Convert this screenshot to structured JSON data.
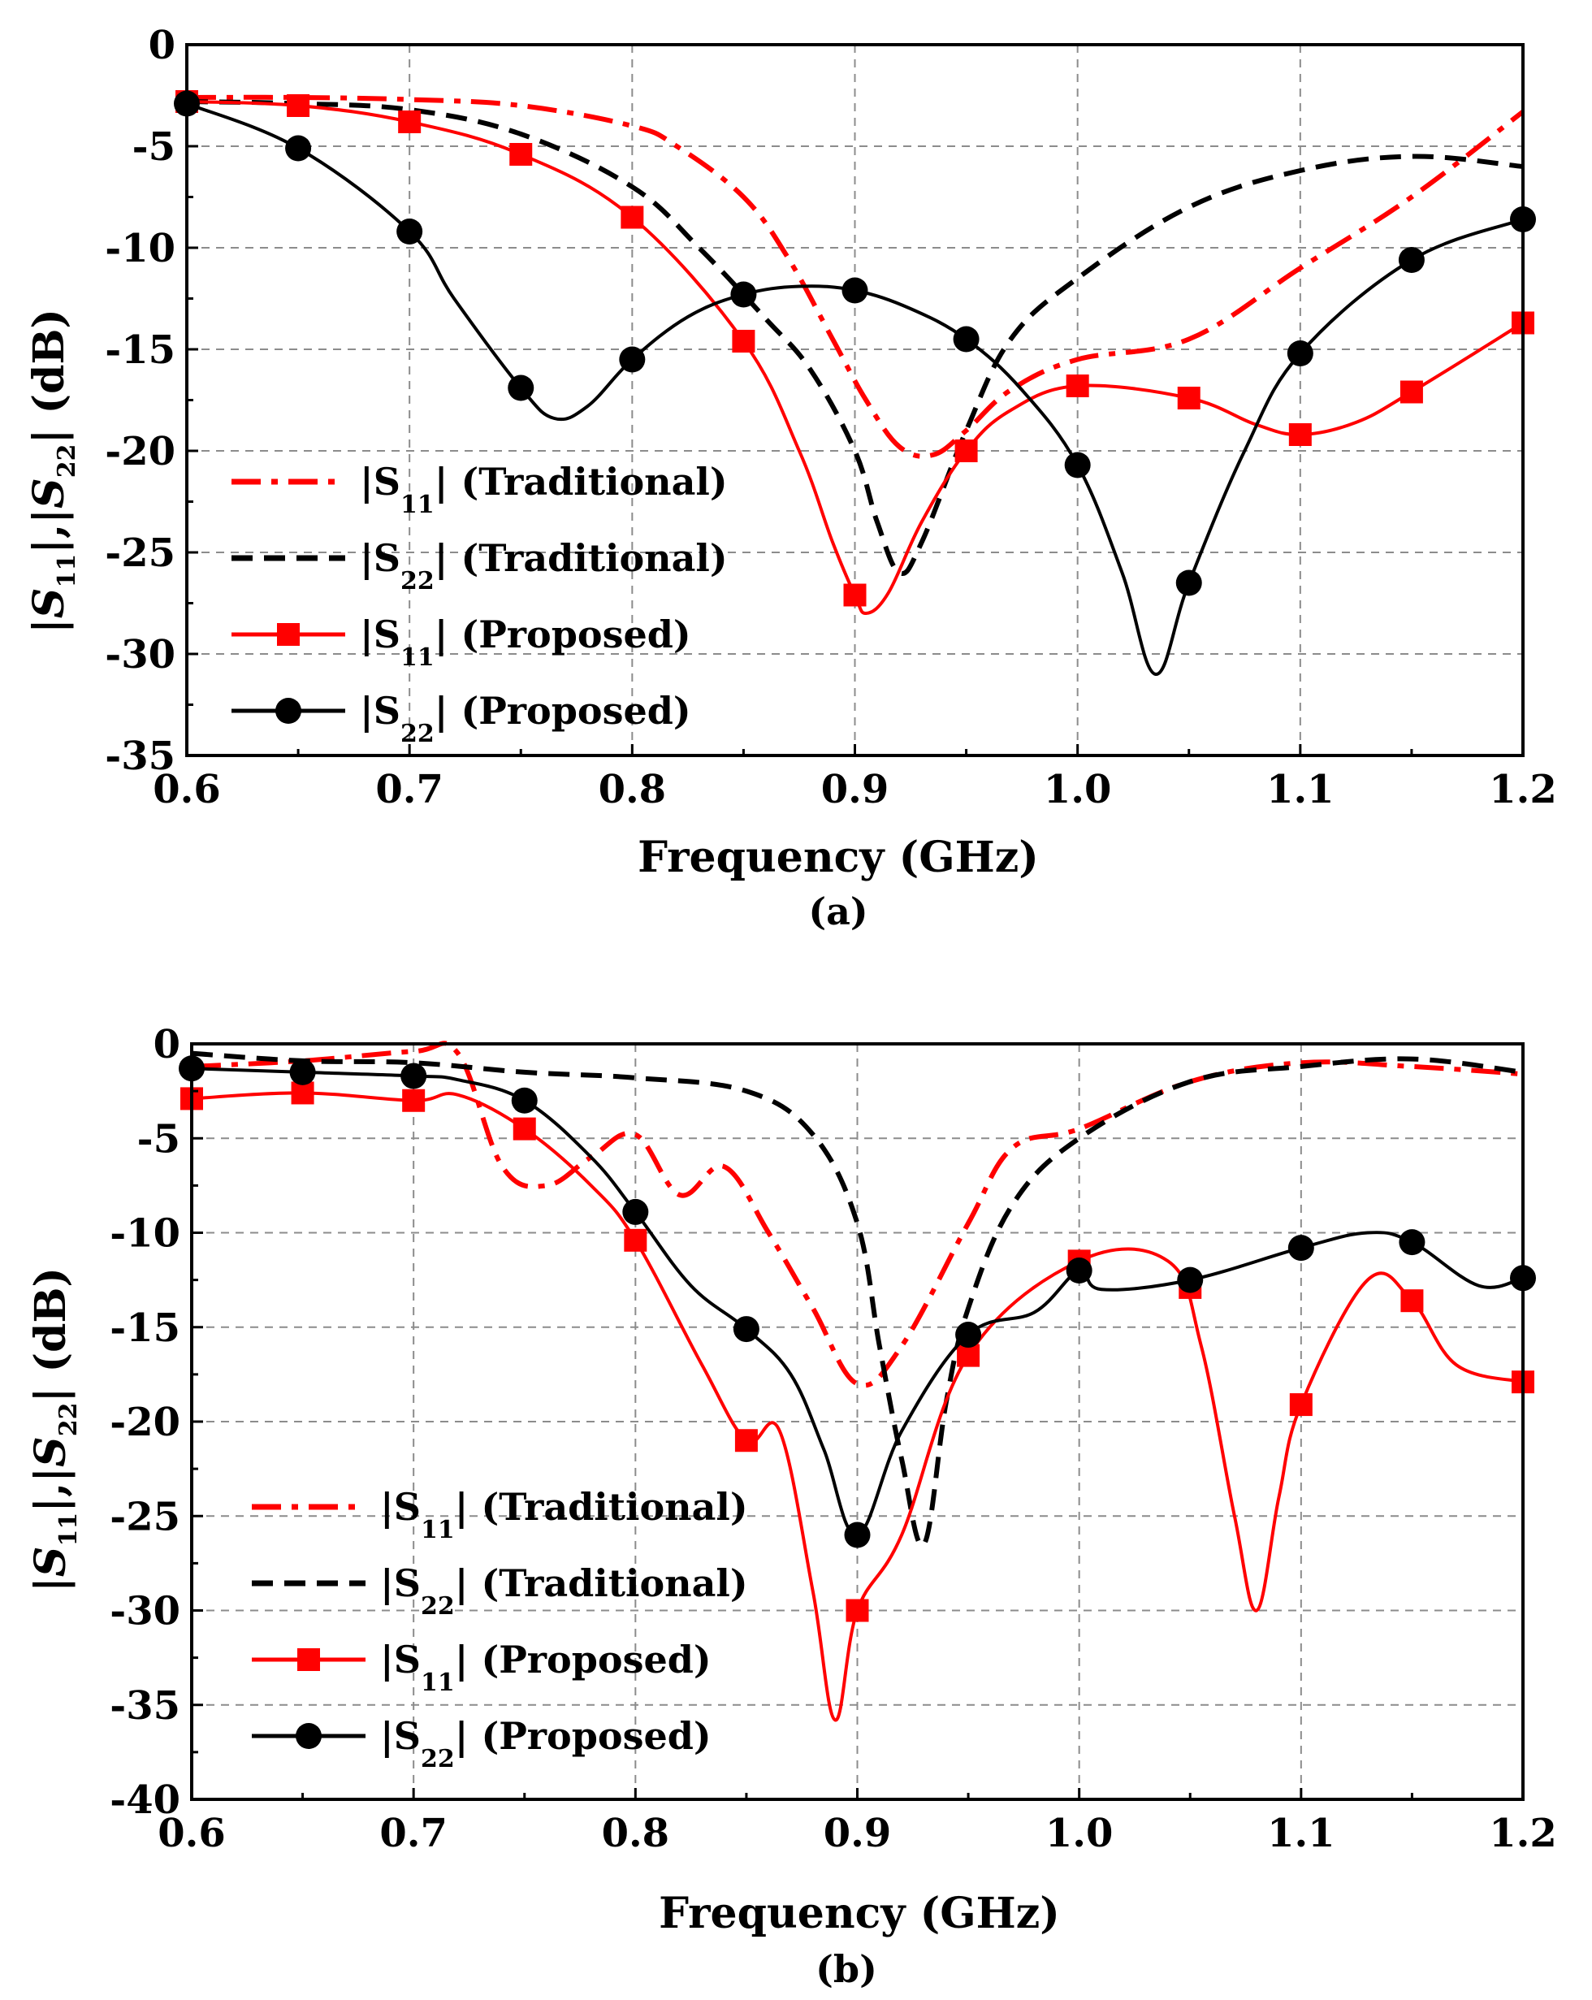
{
  "chart_data": [
    {
      "type": "line",
      "caption": "(a)",
      "xlabel": "Frequency (GHz)",
      "ylabel": "|S11|,|S22| (dB)",
      "xlim": [
        0.6,
        1.2
      ],
      "ylim": [
        -35,
        0
      ],
      "xticks": [
        "0.6",
        "0.7",
        "0.8",
        "0.9",
        "1.0",
        "1.1",
        "1.2"
      ],
      "yticks": [
        "0",
        "-5",
        "-10",
        "-15",
        "-20",
        "-25",
        "-30",
        "-35"
      ],
      "grid": true,
      "legend_position": "bottom-left",
      "series": [
        {
          "name": "|S11| (Traditional)",
          "label_main": "|S",
          "label_sub": "11",
          "label_tail": "| (Traditional)",
          "color": "#ff0000",
          "dash": "dashdot",
          "marker": "none",
          "x": [
            0.6,
            0.65,
            0.7,
            0.75,
            0.8,
            0.82,
            0.85,
            0.87,
            0.89,
            0.905,
            0.92,
            0.935,
            0.95,
            0.97,
            1.0,
            1.05,
            1.1,
            1.15,
            1.2
          ],
          "y": [
            -2.6,
            -2.6,
            -2.7,
            -3.0,
            -4.0,
            -5.0,
            -7.5,
            -10.5,
            -14.5,
            -17.5,
            -19.8,
            -20.2,
            -19.0,
            -17.0,
            -15.5,
            -14.5,
            -11.0,
            -7.5,
            -3.3
          ]
        },
        {
          "name": "|S22| (Traditional)",
          "label_main": "|S",
          "label_sub": "22",
          "label_tail": "| (Traditional)",
          "color": "#000000",
          "dash": "dash",
          "marker": "none",
          "x": [
            0.6,
            0.65,
            0.7,
            0.75,
            0.8,
            0.83,
            0.86,
            0.88,
            0.9,
            0.91,
            0.92,
            0.93,
            0.95,
            0.97,
            1.0,
            1.05,
            1.1,
            1.15,
            1.2
          ],
          "y": [
            -2.8,
            -2.9,
            -3.2,
            -4.4,
            -7.0,
            -10.0,
            -13.5,
            -16.0,
            -20.0,
            -23.5,
            -26.0,
            -24.5,
            -19.0,
            -14.5,
            -11.5,
            -8.0,
            -6.2,
            -5.5,
            -6.0
          ]
        },
        {
          "name": "|S11| (Proposed)",
          "label_main": "|S",
          "label_sub": "11",
          "label_tail": "| (Proposed)",
          "color": "#ff0000",
          "dash": "solid",
          "marker": "square",
          "x": [
            0.6,
            0.65,
            0.7,
            0.75,
            0.8,
            0.85,
            0.875,
            0.89,
            0.9,
            0.905,
            0.915,
            0.93,
            0.95,
            0.97,
            1.0,
            1.05,
            1.08,
            1.1,
            1.125,
            1.15,
            1.2
          ],
          "y": [
            -2.8,
            -3.0,
            -3.8,
            -5.4,
            -8.5,
            -14.6,
            -20.0,
            -24.5,
            -27.1,
            -28.0,
            -27.0,
            -23.5,
            -20.0,
            -18.0,
            -16.8,
            -17.4,
            -18.7,
            -19.2,
            -18.6,
            -17.1,
            -13.7
          ],
          "marker_x": [
            0.6,
            0.65,
            0.7,
            0.75,
            0.8,
            0.85,
            0.9,
            0.95,
            1.0,
            1.05,
            1.1,
            1.15,
            1.2
          ],
          "marker_y": [
            -2.8,
            -3.0,
            -3.8,
            -5.4,
            -8.5,
            -14.6,
            -27.1,
            -20.0,
            -16.8,
            -17.4,
            -19.2,
            -17.1,
            -13.7
          ]
        },
        {
          "name": "|S22| (Proposed)",
          "label_main": "|S",
          "label_sub": "22",
          "label_tail": "| (Proposed)",
          "color": "#000000",
          "dash": "solid",
          "marker": "circle",
          "x": [
            0.6,
            0.65,
            0.7,
            0.72,
            0.75,
            0.765,
            0.78,
            0.8,
            0.825,
            0.85,
            0.875,
            0.9,
            0.925,
            0.95,
            0.975,
            1.0,
            1.02,
            1.035,
            1.05,
            1.075,
            1.1,
            1.15,
            1.2
          ],
          "y": [
            -2.9,
            -5.1,
            -9.2,
            -12.5,
            -16.9,
            -18.4,
            -17.8,
            -15.5,
            -13.4,
            -12.3,
            -11.9,
            -12.1,
            -13.0,
            -14.5,
            -17.0,
            -20.7,
            -26.0,
            -31.0,
            -26.5,
            -20.0,
            -15.2,
            -10.6,
            -8.6
          ],
          "marker_x": [
            0.6,
            0.65,
            0.7,
            0.75,
            0.8,
            0.85,
            0.9,
            0.95,
            1.0,
            1.05,
            1.1,
            1.15,
            1.2
          ],
          "marker_y": [
            -2.9,
            -5.1,
            -9.2,
            -16.9,
            -15.5,
            -12.3,
            -12.1,
            -14.5,
            -20.7,
            -26.5,
            -15.2,
            -10.6,
            -8.6
          ]
        }
      ]
    },
    {
      "type": "line",
      "caption": "(b)",
      "xlabel": "Frequency (GHz)",
      "ylabel": "|S11|,|S22| (dB)",
      "xlim": [
        0.6,
        1.2
      ],
      "ylim": [
        -40,
        0
      ],
      "xticks": [
        "0.6",
        "0.7",
        "0.8",
        "0.9",
        "1.0",
        "1.1",
        "1.2"
      ],
      "yticks": [
        "0",
        "-5",
        "-10",
        "-15",
        "-20",
        "-25",
        "-30",
        "-35",
        "-40"
      ],
      "grid": true,
      "legend_position": "bottom-left",
      "series": [
        {
          "name": "|S11| (Traditional)",
          "label_main": "|S",
          "label_sub": "11",
          "label_tail": "| (Traditional)",
          "color": "#ff0000",
          "dash": "dashdot",
          "marker": "none",
          "x": [
            0.6,
            0.65,
            0.7,
            0.72,
            0.74,
            0.76,
            0.78,
            0.8,
            0.82,
            0.84,
            0.86,
            0.88,
            0.9,
            0.92,
            0.95,
            0.97,
            1.0,
            1.05,
            1.1,
            1.15,
            1.2
          ],
          "y": [
            -1.2,
            -0.9,
            -0.4,
            -0.5,
            -6.5,
            -7.5,
            -6.0,
            -4.8,
            -8.0,
            -6.5,
            -10.0,
            -14.0,
            -18.0,
            -16.0,
            -9.5,
            -5.5,
            -4.5,
            -2.0,
            -1.0,
            -1.2,
            -1.6
          ],
          "marker_x": [],
          "marker_y": []
        },
        {
          "name": "|S22| (Traditional)",
          "label_main": "|S",
          "label_sub": "22",
          "label_tail": "| (Traditional)",
          "color": "#000000",
          "dash": "dash",
          "marker": "none",
          "x": [
            0.6,
            0.65,
            0.7,
            0.75,
            0.8,
            0.85,
            0.88,
            0.9,
            0.91,
            0.92,
            0.93,
            0.94,
            0.95,
            0.97,
            1.0,
            1.05,
            1.1,
            1.15,
            1.2
          ],
          "y": [
            -0.5,
            -0.9,
            -1.0,
            -1.5,
            -1.8,
            -2.5,
            -4.8,
            -9.5,
            -16.0,
            -22.0,
            -26.5,
            -19.0,
            -14.0,
            -8.5,
            -5.0,
            -2.0,
            -1.2,
            -0.8,
            -1.5
          ],
          "marker_x": [],
          "marker_y": []
        },
        {
          "name": "|S11| (Proposed)",
          "label_main": "|S",
          "label_sub": "11",
          "label_tail": "| (Proposed)",
          "color": "#ff0000",
          "dash": "solid",
          "marker": "square",
          "x": [
            0.6,
            0.65,
            0.7,
            0.72,
            0.75,
            0.78,
            0.8,
            0.83,
            0.85,
            0.865,
            0.88,
            0.89,
            0.9,
            0.92,
            0.95,
            1.0,
            1.04,
            1.055,
            1.07,
            1.08,
            1.09,
            1.1,
            1.13,
            1.15,
            1.17,
            1.2
          ],
          "y": [
            -2.9,
            -2.6,
            -3.0,
            -2.7,
            -4.5,
            -7.5,
            -10.4,
            -17.0,
            -21.0,
            -20.5,
            -29.0,
            -35.8,
            -30.0,
            -26.0,
            -16.5,
            -11.5,
            -11.5,
            -16.0,
            -25.0,
            -30.0,
            -24.0,
            -19.1,
            -12.5,
            -13.6,
            -17.0,
            -17.9
          ],
          "marker_x": [
            0.6,
            0.65,
            0.7,
            0.75,
            0.8,
            0.85,
            0.9,
            0.95,
            1.0,
            1.05,
            1.1,
            1.15,
            1.2
          ],
          "marker_y": [
            -2.9,
            -2.6,
            -3.0,
            -4.5,
            -10.4,
            -21.0,
            -30.0,
            -16.5,
            -11.5,
            -12.9,
            -19.1,
            -13.6,
            -17.9
          ]
        },
        {
          "name": "|S22| (Proposed)",
          "label_main": "|S",
          "label_sub": "22",
          "label_tail": "| (Proposed)",
          "color": "#000000",
          "dash": "solid",
          "marker": "circle",
          "x": [
            0.6,
            0.65,
            0.7,
            0.72,
            0.75,
            0.78,
            0.8,
            0.825,
            0.85,
            0.87,
            0.885,
            0.9,
            0.92,
            0.95,
            0.98,
            1.0,
            1.01,
            1.05,
            1.1,
            1.13,
            1.15,
            1.18,
            1.2
          ],
          "y": [
            -1.3,
            -1.5,
            -1.7,
            -1.9,
            -3.0,
            -6.0,
            -8.9,
            -12.8,
            -15.1,
            -17.5,
            -21.5,
            -26.0,
            -20.5,
            -15.4,
            -14.2,
            -12.0,
            -13.0,
            -12.5,
            -10.8,
            -10.0,
            -10.5,
            -12.8,
            -12.4
          ],
          "marker_x": [
            0.6,
            0.65,
            0.7,
            0.75,
            0.8,
            0.85,
            0.9,
            0.95,
            1.0,
            1.05,
            1.1,
            1.15,
            1.2
          ],
          "marker_y": [
            -1.3,
            -1.5,
            -1.7,
            -3.0,
            -8.9,
            -15.1,
            -26.0,
            -15.4,
            -12.0,
            -12.5,
            -10.8,
            -10.5,
            -12.4
          ]
        }
      ]
    }
  ]
}
